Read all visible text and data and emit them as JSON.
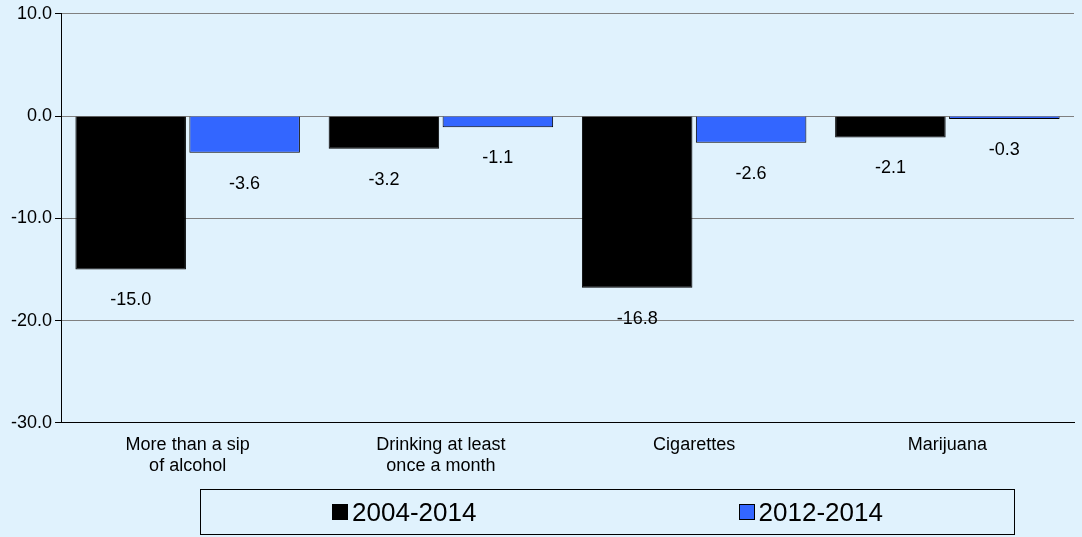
{
  "chart_data": {
    "type": "bar",
    "categories": [
      "More than a sip of alcohol",
      "Drinking at least once a month",
      "Cigarettes",
      "Marijuana"
    ],
    "series": [
      {
        "name": "2004-2014",
        "color": "#000000",
        "values": [
          -15.0,
          -3.2,
          -16.8,
          -2.1
        ],
        "value_labels": [
          "-15.0",
          "-3.2",
          "-16.8",
          "-2.1"
        ]
      },
      {
        "name": "2012-2014",
        "color": "#3366ff",
        "values": [
          -3.6,
          -1.1,
          -2.6,
          -0.3
        ],
        "value_labels": [
          "-3.6",
          "-1.1",
          "-2.6",
          "-0.3"
        ]
      }
    ],
    "ylim": [
      -30,
      10
    ],
    "yticks": [
      {
        "value": -30,
        "label": "-30.0"
      },
      {
        "value": -20,
        "label": "-20.0"
      },
      {
        "value": -10,
        "label": "-10.0"
      },
      {
        "value": 0,
        "label": "0.0"
      },
      {
        "value": 10,
        "label": "10.0"
      }
    ],
    "grid": "y",
    "legend": "bottom"
  }
}
